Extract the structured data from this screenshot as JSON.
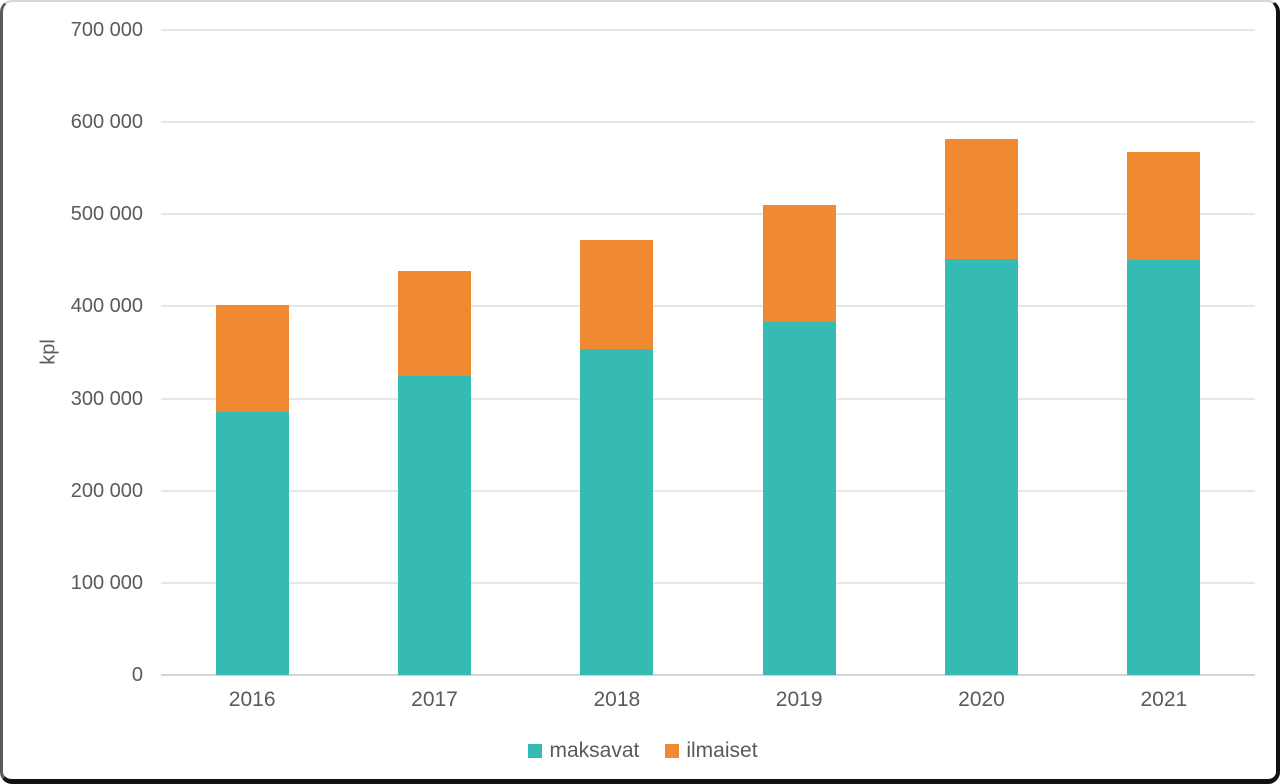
{
  "chart_data": {
    "type": "bar",
    "stacked": true,
    "title": "",
    "xlabel": "",
    "ylabel": "kpl",
    "categories": [
      "2016",
      "2017",
      "2018",
      "2019",
      "2020",
      "2021"
    ],
    "series": [
      {
        "name": "maksavat",
        "color": "#35bbb4",
        "values": [
          285000,
          324000,
          354000,
          383000,
          452000,
          450000
        ]
      },
      {
        "name": "ilmaiset",
        "color": "#ef8a33",
        "values": [
          117000,
          114000,
          118000,
          127000,
          130000,
          118000
        ]
      }
    ],
    "totals": [
      402000,
      438000,
      472000,
      510000,
      582000,
      568000
    ],
    "ylim": [
      0,
      700000
    ],
    "ytick_interval": 100000,
    "yticks": [
      {
        "value": 0,
        "label": "0"
      },
      {
        "value": 100000,
        "label": "100 000"
      },
      {
        "value": 200000,
        "label": "200 000"
      },
      {
        "value": 300000,
        "label": "300 000"
      },
      {
        "value": 400000,
        "label": "400 000"
      },
      {
        "value": 500000,
        "label": "500 000"
      },
      {
        "value": 600000,
        "label": "600 000"
      },
      {
        "value": 700000,
        "label": "700 000"
      }
    ],
    "grid": true,
    "legend_position": "bottom"
  },
  "colors": {
    "gridline": "#e7e7e7",
    "axis_line": "#d4d4d4",
    "text": "#5a5a5a",
    "background": "#ffffff"
  }
}
